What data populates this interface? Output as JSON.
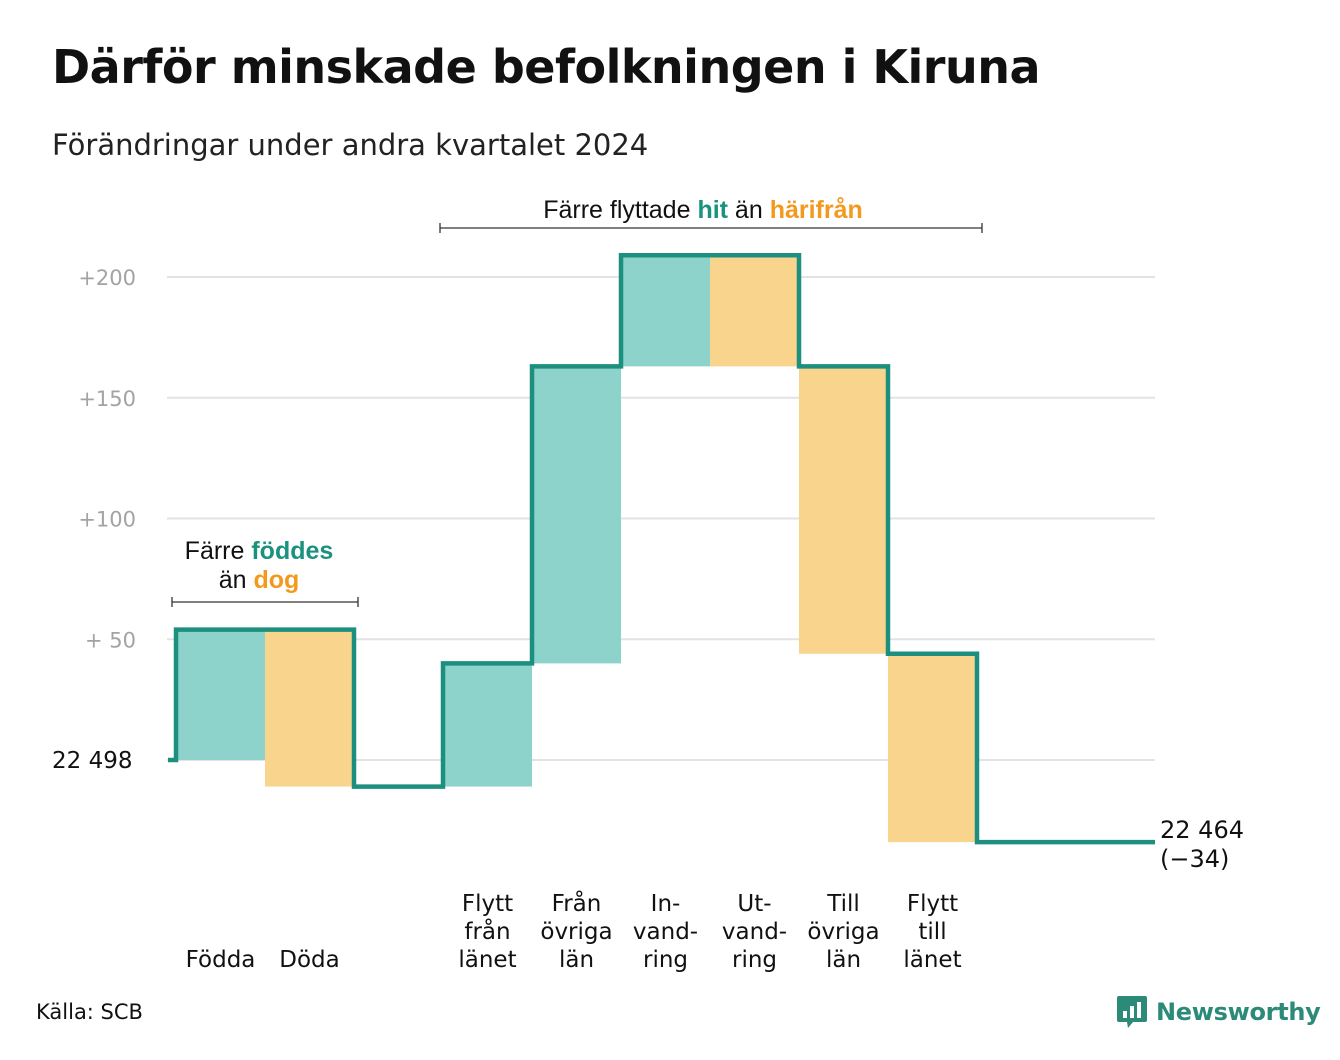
{
  "title": "Därför minskade befolkningen i Kiruna",
  "subtitle": "Förändringar under andra kvartalet 2024",
  "source": "Källa: SCB",
  "brand": "Newsworthy",
  "colors": {
    "inflow": "#8dd3cb",
    "outflow": "#f8d48d",
    "line": "#1c8f7e",
    "grid": "#e3e3e3",
    "tick": "#a3a3a3",
    "accent_green": "#1a927f",
    "accent_orange": "#f39a1e"
  },
  "chart_data": {
    "type": "waterfall",
    "start": {
      "label": "22  498",
      "value": 22498
    },
    "end": {
      "value_label": "22 464",
      "change_label": "(−34)",
      "value": 22464,
      "change": -34
    },
    "y_ticks": [
      {
        "value": 200,
        "label": "+200"
      },
      {
        "value": 150,
        "label": "+150"
      },
      {
        "value": 100,
        "label": "+100"
      },
      {
        "value": 50,
        "label": "+  50"
      }
    ],
    "ylim": [
      -40,
      220
    ],
    "grid": true,
    "steps": [
      {
        "key": "fodda",
        "label_lines": [
          "Födda"
        ],
        "type": "in",
        "change": 54
      },
      {
        "key": "doda",
        "label_lines": [
          "Döda"
        ],
        "type": "out",
        "change": -65
      },
      {
        "key": "gap",
        "label_lines": [],
        "type": "gap",
        "change": 0
      },
      {
        "key": "flytt_fran_lanet",
        "label_lines": [
          "Flytt",
          "från",
          "länet"
        ],
        "type": "in",
        "change": 51
      },
      {
        "key": "fran_ovriga_lan",
        "label_lines": [
          "Från",
          "övriga",
          "län"
        ],
        "type": "in",
        "change": 123
      },
      {
        "key": "invandring",
        "label_lines": [
          "In-",
          "vand-",
          "ring"
        ],
        "type": "in",
        "change": 46
      },
      {
        "key": "utvandring",
        "label_lines": [
          "Ut-",
          "vand-",
          "ring"
        ],
        "type": "out",
        "change": -46
      },
      {
        "key": "till_ovriga_lan",
        "label_lines": [
          "Till",
          "övriga",
          "län"
        ],
        "type": "out",
        "change": -119
      },
      {
        "key": "flytt_till_lanet",
        "label_lines": [
          "Flytt",
          "till",
          "länet"
        ],
        "type": "out",
        "change": -78
      },
      {
        "key": "tail",
        "label_lines": [],
        "type": "gap",
        "change": 0
      }
    ],
    "annotations": {
      "births": {
        "line1_a": "Färre ",
        "line1_b": "föddes",
        "line2_a": "än ",
        "line2_b": "dog"
      },
      "migration": {
        "a": "Färre flyttade ",
        "b": "hit",
        "c": " än ",
        "d": "härifrån"
      }
    }
  }
}
